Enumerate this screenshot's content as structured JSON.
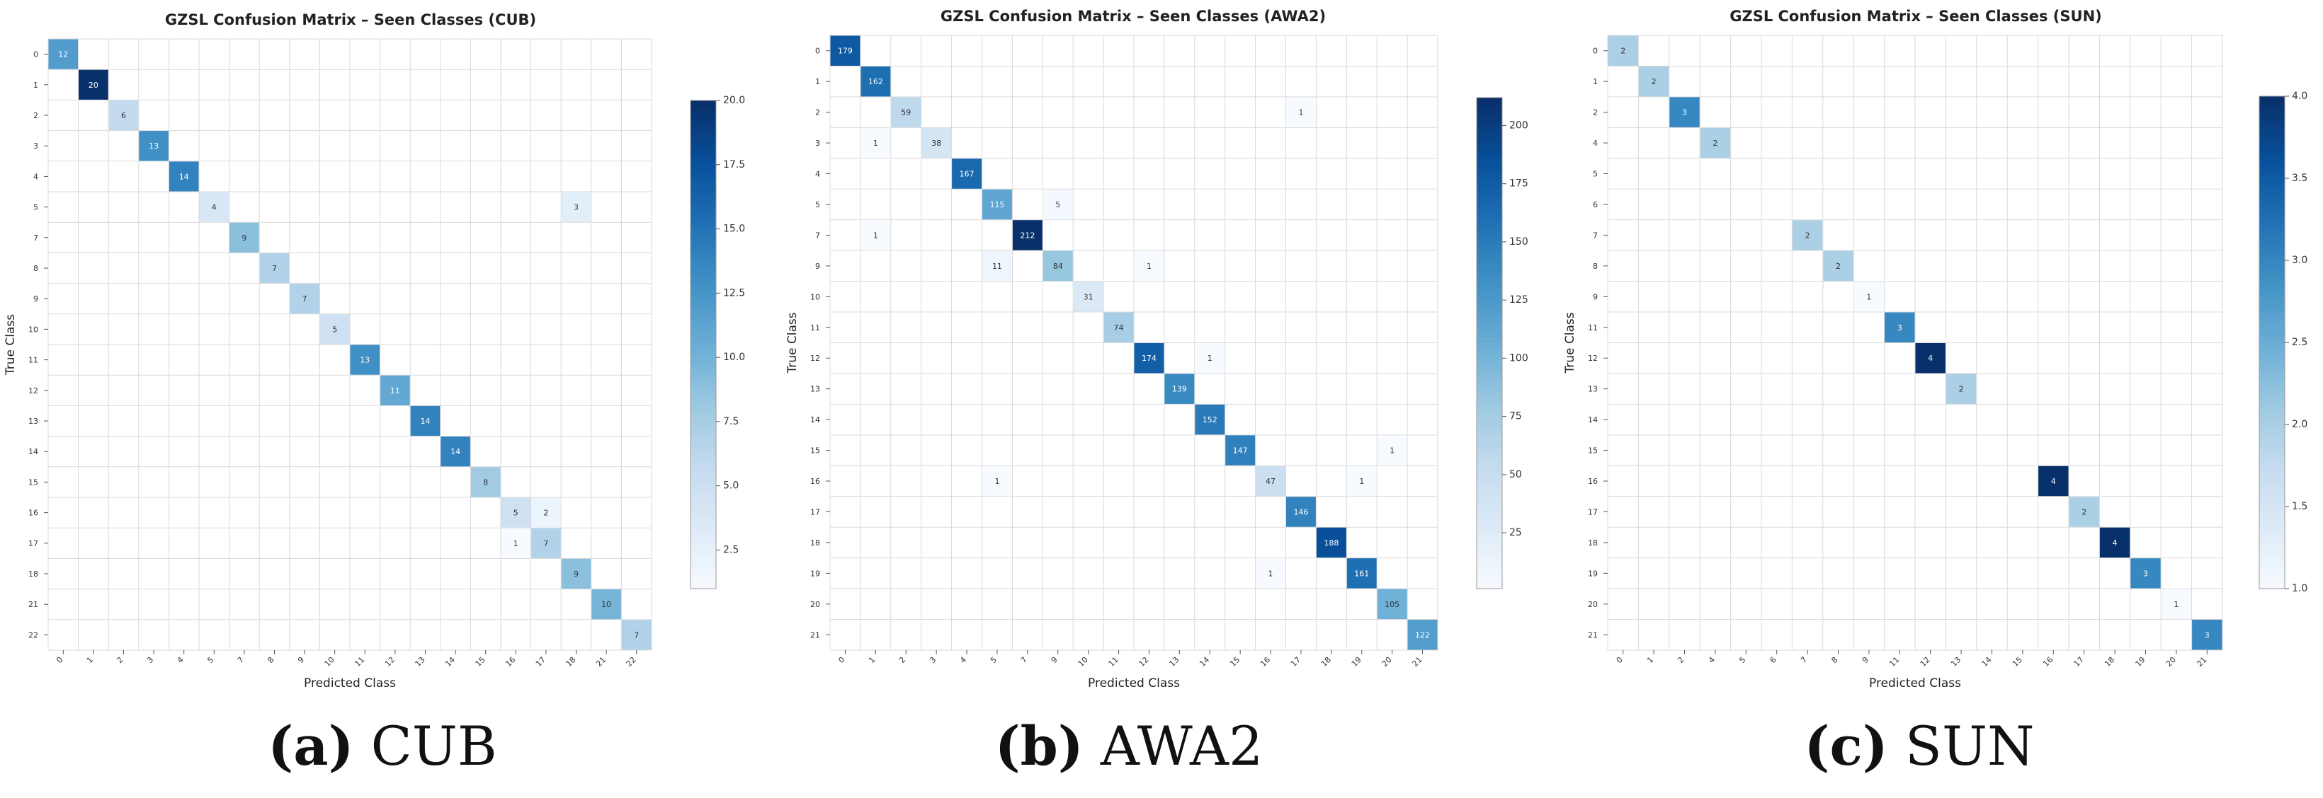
{
  "captions": [
    {
      "letter": "(a)",
      "name": "CUB"
    },
    {
      "letter": "(b)",
      "name": "AWA2"
    },
    {
      "letter": "(c)",
      "name": "SUN"
    }
  ],
  "colors": {
    "low": "#f7fbff",
    "high": "#08306b",
    "grid": "#d9d9d9"
  },
  "chart_data": [
    {
      "type": "heatmap",
      "title": "GZSL Confusion Matrix – Seen Classes (CUB)",
      "xlabel": "Predicted Class",
      "ylabel": "True Class",
      "rows": [
        "0",
        "1",
        "2",
        "3",
        "4",
        "5",
        "7",
        "8",
        "9",
        "10",
        "11",
        "12",
        "13",
        "14",
        "15",
        "16",
        "17",
        "18",
        "21",
        "22"
      ],
      "cols": [
        "0",
        "1",
        "2",
        "3",
        "4",
        "5",
        "7",
        "8",
        "9",
        "10",
        "11",
        "12",
        "13",
        "14",
        "15",
        "16",
        "17",
        "18",
        "21",
        "22"
      ],
      "cells": [
        [
          0,
          0,
          12
        ],
        [
          1,
          1,
          20
        ],
        [
          2,
          2,
          6
        ],
        [
          3,
          3,
          13
        ],
        [
          4,
          4,
          14
        ],
        [
          5,
          5,
          4
        ],
        [
          5,
          17,
          3
        ],
        [
          6,
          6,
          9
        ],
        [
          7,
          7,
          7
        ],
        [
          8,
          8,
          7
        ],
        [
          9,
          9,
          5
        ],
        [
          10,
          10,
          13
        ],
        [
          11,
          11,
          11
        ],
        [
          12,
          12,
          14
        ],
        [
          13,
          13,
          14
        ],
        [
          14,
          14,
          8
        ],
        [
          15,
          15,
          5
        ],
        [
          15,
          16,
          2
        ],
        [
          16,
          15,
          1
        ],
        [
          16,
          16,
          7
        ],
        [
          17,
          17,
          9
        ],
        [
          18,
          18,
          10
        ],
        [
          19,
          19,
          7
        ]
      ],
      "colorbar": {
        "min": 1,
        "max": 20,
        "ticks": [
          "2.5",
          "5.0",
          "7.5",
          "10.0",
          "12.5",
          "15.0",
          "17.5",
          "20.0"
        ],
        "tick_values": [
          2.5,
          5,
          7.5,
          10,
          12.5,
          15,
          17.5,
          20
        ]
      }
    },
    {
      "type": "heatmap",
      "title": "GZSL Confusion Matrix – Seen Classes (AWA2)",
      "xlabel": "Predicted Class",
      "ylabel": "True Class",
      "rows": [
        "0",
        "1",
        "2",
        "3",
        "4",
        "5",
        "7",
        "9",
        "10",
        "11",
        "12",
        "13",
        "14",
        "15",
        "16",
        "17",
        "18",
        "19",
        "20",
        "21"
      ],
      "cols": [
        "0",
        "1",
        "2",
        "3",
        "4",
        "5",
        "7",
        "9",
        "10",
        "11",
        "12",
        "13",
        "14",
        "15",
        "16",
        "17",
        "18",
        "19",
        "20",
        "21"
      ],
      "cells": [
        [
          0,
          0,
          179
        ],
        [
          1,
          1,
          162
        ],
        [
          2,
          2,
          59
        ],
        [
          2,
          15,
          1
        ],
        [
          3,
          1,
          1
        ],
        [
          3,
          3,
          38
        ],
        [
          4,
          4,
          167
        ],
        [
          5,
          5,
          115
        ],
        [
          5,
          7,
          5
        ],
        [
          6,
          1,
          1
        ],
        [
          6,
          6,
          212
        ],
        [
          7,
          5,
          11
        ],
        [
          7,
          7,
          84
        ],
        [
          7,
          10,
          1
        ],
        [
          8,
          8,
          31
        ],
        [
          9,
          9,
          74
        ],
        [
          10,
          10,
          174
        ],
        [
          10,
          12,
          1
        ],
        [
          11,
          11,
          139
        ],
        [
          12,
          12,
          152
        ],
        [
          13,
          13,
          147
        ],
        [
          13,
          18,
          1
        ],
        [
          14,
          5,
          1
        ],
        [
          14,
          14,
          47
        ],
        [
          14,
          17,
          1
        ],
        [
          15,
          15,
          146
        ],
        [
          16,
          16,
          188
        ],
        [
          17,
          14,
          1
        ],
        [
          17,
          17,
          161
        ],
        [
          18,
          18,
          105
        ],
        [
          19,
          19,
          122
        ]
      ],
      "colorbar": {
        "min": 1,
        "max": 212,
        "ticks": [
          "25",
          "50",
          "75",
          "100",
          "125",
          "150",
          "175",
          "200"
        ],
        "tick_values": [
          25,
          50,
          75,
          100,
          125,
          150,
          175,
          200
        ]
      }
    },
    {
      "type": "heatmap",
      "title": "GZSL Confusion Matrix – Seen Classes (SUN)",
      "xlabel": "Predicted Class",
      "ylabel": "True Class",
      "rows": [
        "0",
        "1",
        "2",
        "4",
        "5",
        "6",
        "7",
        "8",
        "9",
        "11",
        "12",
        "13",
        "14",
        "15",
        "16",
        "17",
        "18",
        "19",
        "20",
        "21"
      ],
      "cols": [
        "0",
        "1",
        "2",
        "4",
        "5",
        "6",
        "7",
        "8",
        "9",
        "11",
        "12",
        "13",
        "14",
        "15",
        "16",
        "17",
        "18",
        "19",
        "20",
        "21"
      ],
      "cells": [
        [
          0,
          0,
          2
        ],
        [
          1,
          1,
          2
        ],
        [
          2,
          2,
          3
        ],
        [
          3,
          3,
          2
        ],
        [
          6,
          6,
          2
        ],
        [
          7,
          7,
          2
        ],
        [
          8,
          8,
          1
        ],
        [
          9,
          9,
          3
        ],
        [
          10,
          10,
          4
        ],
        [
          11,
          11,
          2
        ],
        [
          14,
          14,
          4
        ],
        [
          15,
          15,
          2
        ],
        [
          16,
          16,
          4
        ],
        [
          17,
          17,
          3
        ],
        [
          18,
          18,
          1
        ],
        [
          19,
          19,
          3
        ]
      ],
      "colorbar": {
        "min": 1,
        "max": 4,
        "ticks": [
          "1.0",
          "1.5",
          "2.0",
          "2.5",
          "3.0",
          "3.5",
          "4.0"
        ],
        "tick_values": [
          1,
          1.5,
          2,
          2.5,
          3,
          3.5,
          4
        ]
      }
    }
  ]
}
